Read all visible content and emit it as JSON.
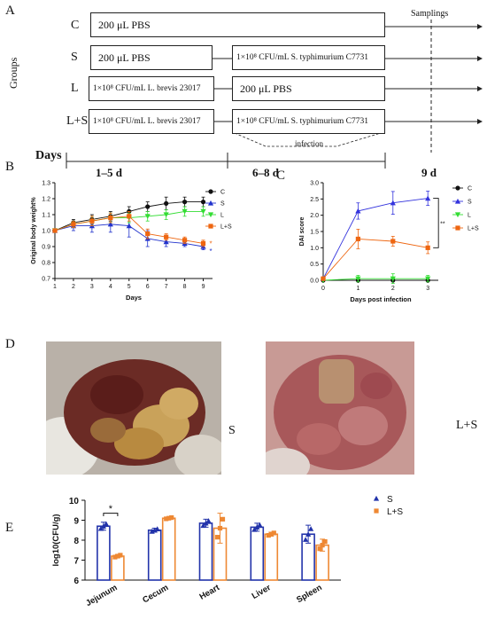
{
  "panel_a": {
    "letter": "A",
    "groups_label": "Groups",
    "samplings_label": "Samplings",
    "infection_label": "infection",
    "days_label": "Days",
    "periods": [
      "1–5 d",
      "6–8 d",
      "9 d"
    ],
    "rows": [
      {
        "group": "C",
        "first": "200 μL PBS",
        "second": ""
      },
      {
        "group": "S",
        "first": "200 μL PBS",
        "second": "1×10⁸ CFU/mL S. typhimurium C7731"
      },
      {
        "group": "L",
        "first": "1×10⁸ CFU/mL L. brevis 23017",
        "second": "200 μL PBS"
      },
      {
        "group": "L+S",
        "first": "1×10⁸ CFU/mL L. brevis 23017",
        "second": "1×10⁸ CFU/mL S. typhimurium C7731"
      }
    ]
  },
  "panel_b": {
    "letter": "B"
  },
  "panel_c": {
    "letter": "C"
  },
  "panel_d": {
    "letter": "D",
    "label_left": "S",
    "label_right": "L+S"
  },
  "panel_e": {
    "letter": "E"
  },
  "chart_data": [
    {
      "id": "body_weight",
      "type": "line",
      "title": "",
      "xlabel": "Days",
      "ylabel": "Original body weight%",
      "x": [
        1,
        2,
        3,
        4,
        5,
        6,
        7,
        8,
        9
      ],
      "xlim": [
        1,
        9.5
      ],
      "ylim": [
        0.7,
        1.3
      ],
      "yticks": [
        "0.7",
        "0.8",
        "0.9",
        "1.0",
        "1.1",
        "1.2",
        "1.3"
      ],
      "legend_position": "top-right",
      "annotations": [
        "*",
        "*"
      ],
      "series": [
        {
          "name": "C",
          "color": "#111111",
          "marker": "circle",
          "values": [
            1.0,
            1.05,
            1.07,
            1.09,
            1.12,
            1.15,
            1.17,
            1.18,
            1.18
          ],
          "errors": [
            0.01,
            0.02,
            0.03,
            0.03,
            0.03,
            0.03,
            0.04,
            0.03,
            0.03
          ]
        },
        {
          "name": "S",
          "color": "#2233cc",
          "marker": "triangle",
          "values": [
            1.0,
            1.03,
            1.03,
            1.04,
            1.03,
            0.95,
            0.93,
            0.92,
            0.9
          ],
          "errors": [
            0.01,
            0.03,
            0.04,
            0.05,
            0.07,
            0.05,
            0.03,
            0.02,
            0.02
          ]
        },
        {
          "name": "L",
          "color": "#33dd33",
          "marker": "triangle-down",
          "values": [
            1.0,
            1.04,
            1.06,
            1.08,
            1.08,
            1.09,
            1.1,
            1.12,
            1.12
          ],
          "errors": [
            0.01,
            0.02,
            0.03,
            0.03,
            0.03,
            0.03,
            0.03,
            0.03,
            0.03
          ]
        },
        {
          "name": "L+S",
          "color": "#ee6611",
          "marker": "square",
          "values": [
            1.0,
            1.04,
            1.06,
            1.08,
            1.09,
            0.98,
            0.96,
            0.94,
            0.92
          ],
          "errors": [
            0.01,
            0.02,
            0.03,
            0.03,
            0.03,
            0.03,
            0.02,
            0.02,
            0.02
          ]
        }
      ]
    },
    {
      "id": "dai_score",
      "type": "line",
      "title": "",
      "xlabel": "Days post infection",
      "ylabel": "DAI score",
      "x": [
        0,
        1,
        2,
        3
      ],
      "xlim": [
        0,
        3.3
      ],
      "ylim": [
        0,
        3.0
      ],
      "yticks": [
        "0.0",
        "0.5",
        "1.0",
        "1.5",
        "2.0",
        "2.5",
        "3.0"
      ],
      "legend_position": "right",
      "annotations": [
        "**"
      ],
      "series": [
        {
          "name": "C",
          "color": "#111111",
          "marker": "circle",
          "values": [
            0.0,
            0.0,
            0.0,
            0.0
          ],
          "errors": [
            0,
            0,
            0,
            0
          ]
        },
        {
          "name": "S",
          "color": "#3333dd",
          "marker": "triangle",
          "values": [
            0.05,
            2.13,
            2.38,
            2.52
          ],
          "errors": [
            0,
            0.25,
            0.35,
            0.22
          ]
        },
        {
          "name": "L",
          "color": "#33dd33",
          "marker": "triangle-down",
          "values": [
            0.0,
            0.05,
            0.05,
            0.05
          ],
          "errors": [
            0,
            0.1,
            0.15,
            0.1
          ]
        },
        {
          "name": "L+S",
          "color": "#ee6611",
          "marker": "square",
          "values": [
            0.05,
            1.27,
            1.2,
            1.0
          ],
          "errors": [
            0,
            0.3,
            0.15,
            0.18
          ]
        }
      ]
    },
    {
      "id": "cfu",
      "type": "bar",
      "title": "",
      "xlabel": "",
      "ylabel": "log10(CFU/g)",
      "categories": [
        "Jejunum",
        "Cecum",
        "Heart",
        "Liver",
        "Spleen"
      ],
      "ylim": [
        6,
        10
      ],
      "yticks": [
        "6",
        "7",
        "8",
        "9",
        "10"
      ],
      "legend_position": "right",
      "annotations": [
        "*"
      ],
      "series": [
        {
          "name": "S",
          "color": "#2233aa",
          "values": [
            8.7,
            8.5,
            8.85,
            8.65,
            8.3
          ],
          "errors": [
            0.2,
            0.1,
            0.2,
            0.2,
            0.45
          ]
        },
        {
          "name": "L+S",
          "color": "#ee8833",
          "values": [
            7.2,
            9.1,
            8.6,
            8.3,
            7.75
          ],
          "errors": [
            0.08,
            0.05,
            0.75,
            0.1,
            0.3
          ]
        }
      ]
    }
  ]
}
